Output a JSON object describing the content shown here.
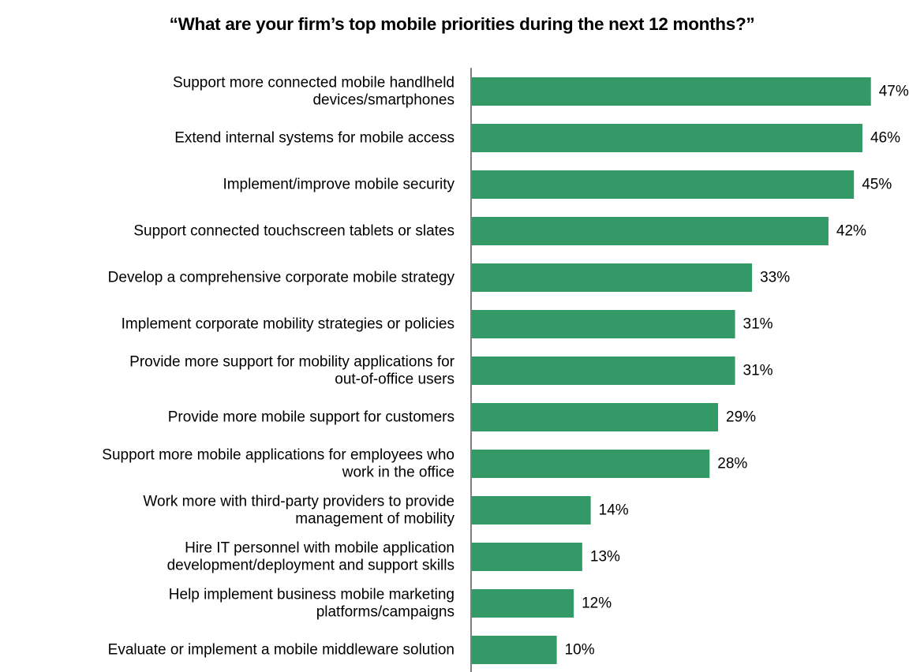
{
  "chart_data": {
    "type": "bar",
    "orientation": "horizontal",
    "title": "“What are your firm’s top mobile priorities during the next 12 months?”",
    "categories": [
      [
        "Support more connected mobile handlheld",
        "devices/smartphones"
      ],
      [
        "Extend internal systems for mobile access"
      ],
      [
        "Implement/improve mobile security"
      ],
      [
        "Support connected touchscreen tablets or slates"
      ],
      [
        "Develop a comprehensive corporate mobile strategy"
      ],
      [
        "Implement corporate mobility strategies or policies"
      ],
      [
        "Provide more support for mobility applications for",
        "out-of-office users"
      ],
      [
        "Provide more mobile support for customers"
      ],
      [
        "Support more mobile applications for employees who",
        "work in the office"
      ],
      [
        "Work more with third-party providers to provide",
        "management of mobility"
      ],
      [
        "Hire IT personnel with mobile application",
        "development/deployment and support skills"
      ],
      [
        "Help implement business mobile marketing",
        "platforms/campaigns"
      ],
      [
        "Evaluate or implement a mobile middleware solution"
      ]
    ],
    "values": [
      47,
      46,
      45,
      42,
      33,
      31,
      31,
      29,
      28,
      14,
      13,
      12,
      10
    ],
    "value_labels": [
      "47%",
      "46%",
      "45%",
      "42%",
      "33%",
      "31%",
      "31%",
      "29%",
      "28%",
      "14%",
      "13%",
      "12%",
      "10%"
    ],
    "bar_color": "#339966",
    "xlim": [
      0,
      50
    ],
    "grid": false,
    "legend": "none"
  }
}
